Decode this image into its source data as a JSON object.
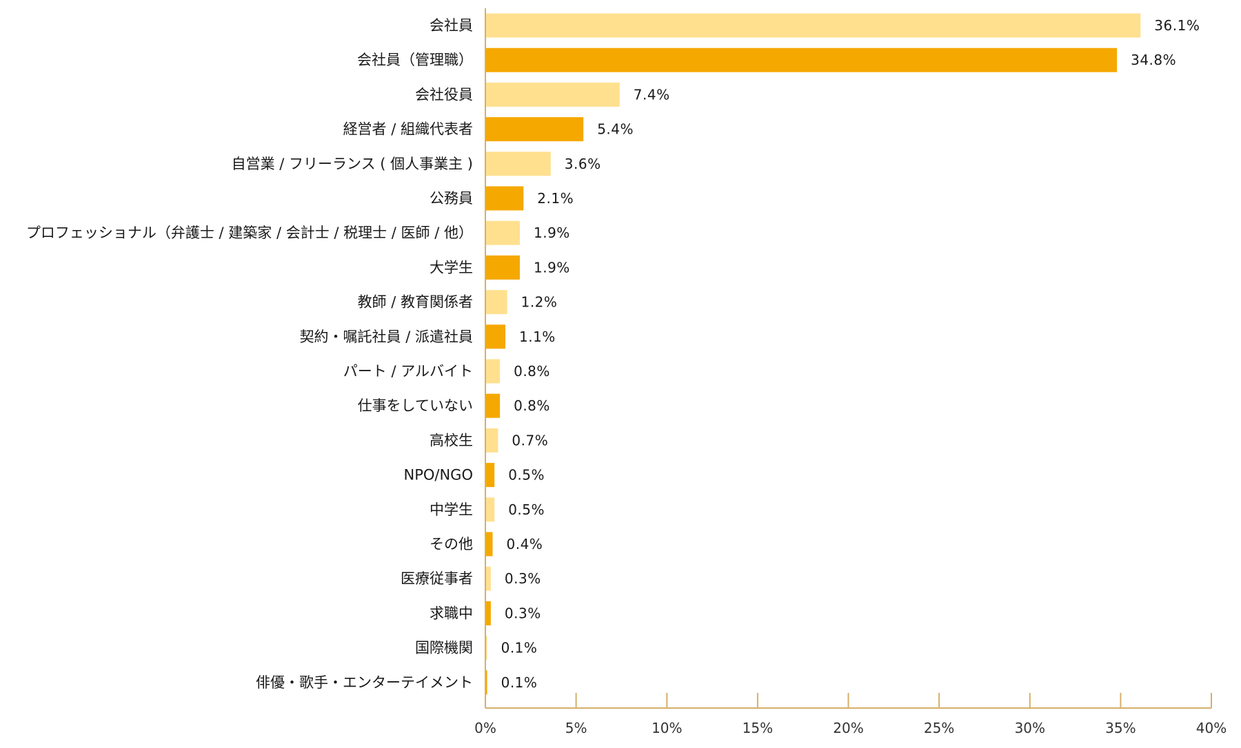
{
  "chart_data": {
    "type": "bar",
    "orientation": "horizontal",
    "categories": [
      "会社員",
      "会社員（管理職）",
      "会社役員",
      "経営者 / 組織代表者",
      "自営業 / フリーランス ( 個人事業主 )",
      "公務員",
      "プロフェッショナル（弁護士 / 建築家 / 会計士 / 税理士 / 医師 / 他）",
      "大学生",
      "教師 / 教育関係者",
      "契約・嘱託社員 / 派遣社員",
      "パート / アルバイト",
      "仕事をしていない",
      "高校生",
      "NPO/NGO",
      "中学生",
      "その他",
      "医療従事者",
      "求職中",
      "国際機関",
      "俳優・歌手・エンターテイメント"
    ],
    "values": [
      36.1,
      34.8,
      7.4,
      5.4,
      3.6,
      2.1,
      1.9,
      1.9,
      1.2,
      1.1,
      0.8,
      0.8,
      0.7,
      0.5,
      0.5,
      0.4,
      0.3,
      0.3,
      0.1,
      0.1
    ],
    "value_labels": [
      "36.1%",
      "34.8%",
      "7.4%",
      "5.4%",
      "3.6%",
      "2.1%",
      "1.9%",
      "1.9%",
      "1.2%",
      "1.1%",
      "0.8%",
      "0.8%",
      "0.7%",
      "0.5%",
      "0.5%",
      "0.4%",
      "0.3%",
      "0.3%",
      "0.1%",
      "0.1%"
    ],
    "xlim": [
      0,
      40
    ],
    "xticks": [
      0,
      5,
      10,
      15,
      20,
      25,
      30,
      35,
      40
    ],
    "xtick_labels": [
      "0%",
      "5%",
      "10%",
      "15%",
      "20%",
      "25%",
      "30%",
      "35%",
      "40%"
    ],
    "bar_colors": [
      "#FFE08F",
      "#F5A800"
    ],
    "axis_color": "#D4B06A",
    "grid": false,
    "legend": "none"
  }
}
